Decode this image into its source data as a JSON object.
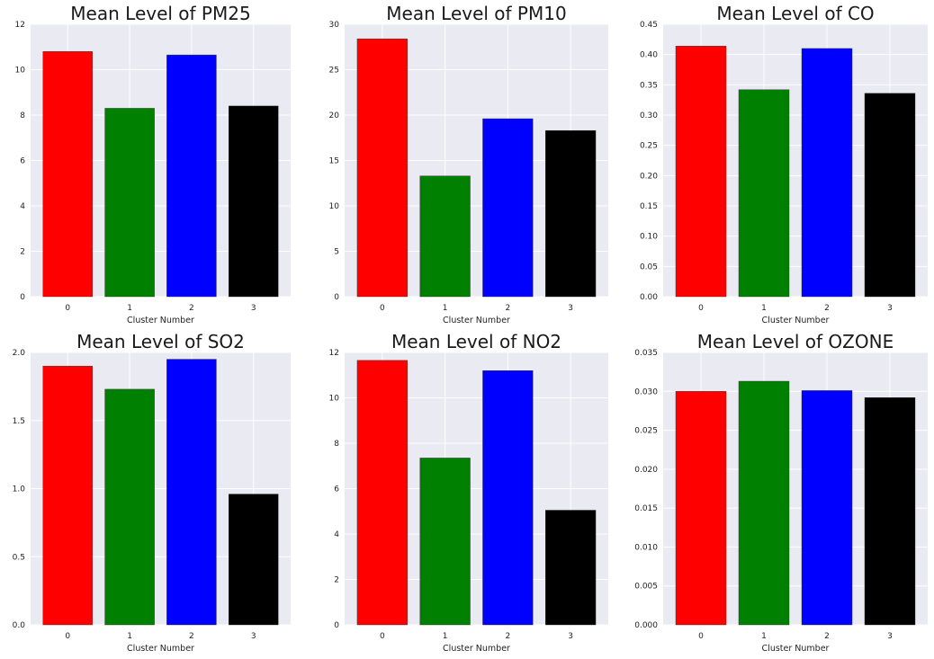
{
  "colors": {
    "plot_bg": "#eaeaf2",
    "grid": "#ffffff"
  },
  "chart_data": [
    {
      "type": "bar",
      "title": "Mean Level of PM25",
      "xlabel": "Cluster Number",
      "ylabel": "",
      "categories": [
        "0",
        "1",
        "2",
        "3"
      ],
      "values": [
        10.8,
        8.3,
        10.65,
        8.4
      ],
      "colors": [
        "#ff0000",
        "#008000",
        "#0000ff",
        "#000000"
      ],
      "ylim": [
        0,
        12
      ],
      "yticks": [
        "0",
        "2",
        "4",
        "6",
        "8",
        "10",
        "12"
      ],
      "grid": true
    },
    {
      "type": "bar",
      "title": "Mean Level of PM10",
      "xlabel": "Cluster Number",
      "ylabel": "",
      "categories": [
        "0",
        "1",
        "2",
        "3"
      ],
      "values": [
        28.4,
        13.3,
        19.6,
        18.3
      ],
      "colors": [
        "#ff0000",
        "#008000",
        "#0000ff",
        "#000000"
      ],
      "ylim": [
        0,
        30
      ],
      "yticks": [
        "0",
        "5",
        "10",
        "15",
        "20",
        "25",
        "30"
      ],
      "grid": true
    },
    {
      "type": "bar",
      "title": "Mean Level of CO",
      "xlabel": "Cluster Number",
      "ylabel": "",
      "categories": [
        "0",
        "1",
        "2",
        "3"
      ],
      "values": [
        0.414,
        0.342,
        0.41,
        0.336
      ],
      "colors": [
        "#ff0000",
        "#008000",
        "#0000ff",
        "#000000"
      ],
      "ylim": [
        0,
        0.45
      ],
      "yticks": [
        "0.00",
        "0.05",
        "0.10",
        "0.15",
        "0.20",
        "0.25",
        "0.30",
        "0.35",
        "0.40",
        "0.45"
      ],
      "grid": true
    },
    {
      "type": "bar",
      "title": "Mean Level of SO2",
      "xlabel": "Cluster Number",
      "ylabel": "",
      "categories": [
        "0",
        "1",
        "2",
        "3"
      ],
      "values": [
        1.9,
        1.73,
        1.95,
        0.96
      ],
      "colors": [
        "#ff0000",
        "#008000",
        "#0000ff",
        "#000000"
      ],
      "ylim": [
        0,
        2.0
      ],
      "yticks": [
        "0.0",
        "0.5",
        "1.0",
        "1.5",
        "2.0"
      ],
      "grid": true
    },
    {
      "type": "bar",
      "title": "Mean Level of NO2",
      "xlabel": "Cluster Number",
      "ylabel": "",
      "categories": [
        "0",
        "1",
        "2",
        "3"
      ],
      "values": [
        11.65,
        7.35,
        11.2,
        5.05
      ],
      "colors": [
        "#ff0000",
        "#008000",
        "#0000ff",
        "#000000"
      ],
      "ylim": [
        0,
        12
      ],
      "yticks": [
        "0",
        "2",
        "4",
        "6",
        "8",
        "10",
        "12"
      ],
      "grid": true
    },
    {
      "type": "bar",
      "title": "Mean Level of OZONE",
      "xlabel": "Cluster Number",
      "ylabel": "",
      "categories": [
        "0",
        "1",
        "2",
        "3"
      ],
      "values": [
        0.03,
        0.0313,
        0.0301,
        0.0292
      ],
      "colors": [
        "#ff0000",
        "#008000",
        "#0000ff",
        "#000000"
      ],
      "ylim": [
        0,
        0.035
      ],
      "yticks": [
        "0.000",
        "0.005",
        "0.010",
        "0.015",
        "0.020",
        "0.025",
        "0.030",
        "0.035"
      ],
      "grid": true
    }
  ]
}
